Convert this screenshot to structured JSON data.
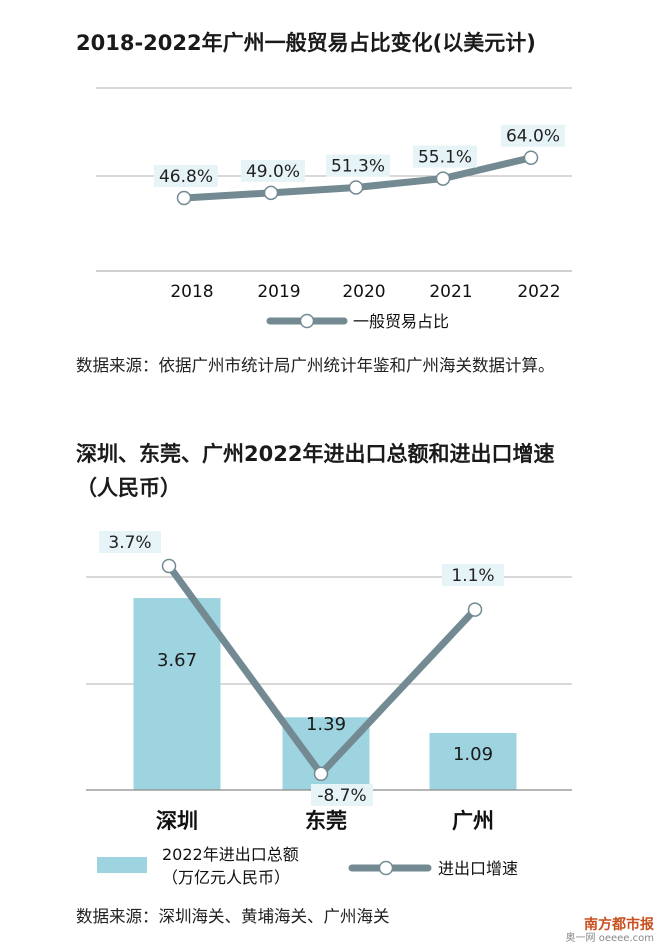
{
  "chart_data": [
    {
      "type": "line",
      "title": "2018-2022年广州一般贸易占比变化(以美元计)",
      "x": [
        "2018",
        "2019",
        "2020",
        "2021",
        "2022"
      ],
      "series": [
        {
          "name": "一般贸易占比",
          "values": [
            46.8,
            49.0,
            51.3,
            55.1,
            64.0
          ],
          "labels": [
            "46.8%",
            "49.0%",
            "51.3%",
            "55.1%",
            "64.0%"
          ]
        }
      ],
      "ylim": [
        0,
        100
      ],
      "grid": true,
      "legend": "bottom",
      "source": "数据来源：依据广州市统计局广州统计年鉴和广州海关数据计算。"
    },
    {
      "type": "bar",
      "title": "深圳、东莞、广州2022年进出口总额和进出口增速（人民币）",
      "categories": [
        "深圳",
        "东莞",
        "广州"
      ],
      "series": [
        {
          "name": "2022年进出口总额（万亿元人民币）",
          "type": "bar",
          "values": [
            3.67,
            1.39,
            1.09
          ],
          "labels": [
            "3.67",
            "1.39",
            "1.09"
          ]
        },
        {
          "name": "进出口增速",
          "type": "line",
          "values": [
            3.7,
            -8.7,
            1.1
          ],
          "labels": [
            "3.7%",
            "-8.7%",
            "1.1%"
          ]
        }
      ],
      "legend": "bottom",
      "source": "数据来源：深圳海关、黄埔海关、广州海关"
    }
  ],
  "colors": {
    "line": "#738a93",
    "bar": "#9ed3e0",
    "grid": "#b3b3b3",
    "marker_fill": "#ffffff",
    "label_bg": "#e6f3f7"
  },
  "watermark": {
    "line1": "南方都市报",
    "line2": "奥一网 oeeee.com"
  }
}
